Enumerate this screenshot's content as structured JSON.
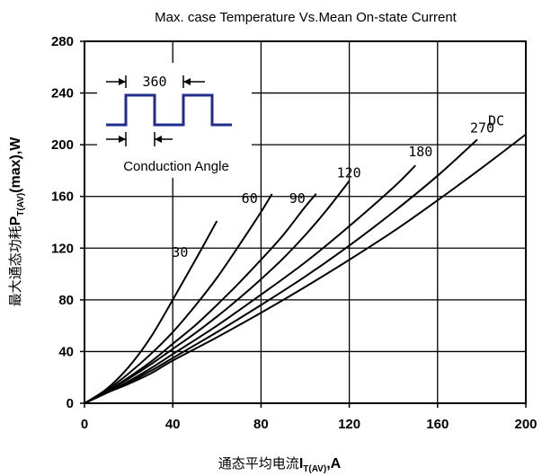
{
  "chart_data": {
    "type": "line",
    "title": "Max. case Temperature Vs.Mean On-state Current",
    "xlabel_main": "通态平均电流",
    "xlabel_symbol": "I",
    "xlabel_sub": "T(AV)",
    "xlabel_unit": ",A",
    "ylabel_main": "最大通态功耗",
    "ylabel_symbol": "P",
    "ylabel_sub": "T(AV)",
    "ylabel_unit": "(max),W",
    "xlim": [
      0,
      200
    ],
    "ylim": [
      0,
      280
    ],
    "xticks": [
      0,
      40,
      80,
      120,
      160,
      200
    ],
    "yticks": [
      0,
      40,
      80,
      120,
      160,
      200,
      240,
      280
    ],
    "grid": true,
    "series": [
      {
        "name": "30",
        "x": [
          0,
          10,
          20,
          30,
          40,
          50,
          60
        ],
        "y": [
          0,
          11,
          28,
          51,
          80,
          110,
          141
        ]
      },
      {
        "name": "60",
        "x": [
          0,
          10,
          20,
          30,
          40,
          50,
          60,
          70,
          80,
          85
        ],
        "y": [
          0,
          10,
          23,
          38,
          55,
          75,
          97,
          122,
          148,
          162
        ]
      },
      {
        "name": "90",
        "x": [
          0,
          10,
          20,
          30,
          40,
          50,
          60,
          70,
          80,
          90,
          100,
          105
        ],
        "y": [
          0,
          9,
          20,
          32,
          46,
          60,
          76,
          93,
          111,
          130,
          152,
          162
        ]
      },
      {
        "name": "120",
        "x": [
          0,
          10,
          20,
          30,
          40,
          50,
          60,
          70,
          80,
          90,
          100,
          110,
          120
        ],
        "y": [
          0,
          9,
          19,
          30,
          42,
          54,
          67,
          81,
          96,
          112,
          130,
          150,
          172
        ]
      },
      {
        "name": "180",
        "x": [
          0,
          10,
          20,
          30,
          40,
          60,
          80,
          100,
          120,
          140,
          150
        ],
        "y": [
          0,
          8,
          17,
          27,
          38,
          60,
          84,
          109,
          137,
          167,
          184
        ]
      },
      {
        "name": "270",
        "x": [
          0,
          10,
          20,
          30,
          40,
          60,
          80,
          100,
          120,
          140,
          160,
          178
        ],
        "y": [
          0,
          8,
          16,
          25,
          35,
          55,
          76,
          98,
          122,
          148,
          176,
          204
        ]
      },
      {
        "name": "DC",
        "x": [
          0,
          10,
          20,
          30,
          40,
          60,
          80,
          100,
          120,
          140,
          160,
          180,
          200
        ],
        "y": [
          0,
          8,
          15,
          23,
          33,
          51,
          70,
          90,
          111,
          133,
          157,
          182,
          208
        ]
      }
    ],
    "inset": {
      "period_label": "360",
      "caption": "Conduction Angle"
    }
  }
}
